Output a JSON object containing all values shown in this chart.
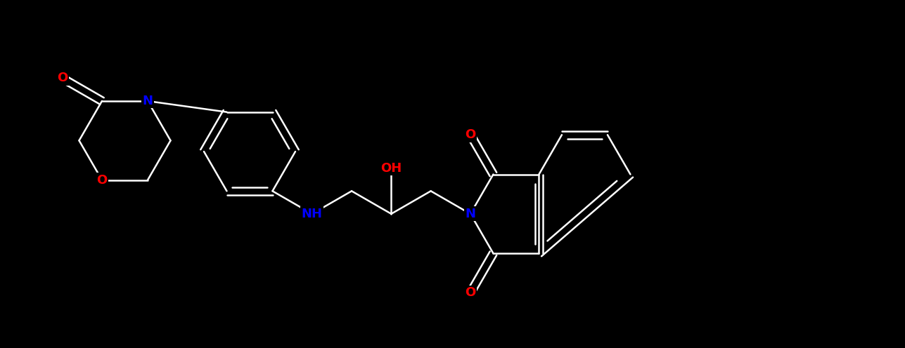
{
  "background_color": "#000000",
  "atom_colors": {
    "N": "#0000FF",
    "O": "#FF0000",
    "white": "#FFFFFF"
  },
  "bond_color": "#FFFFFF",
  "figsize": [
    12.87,
    4.96
  ],
  "dpi": 100
}
